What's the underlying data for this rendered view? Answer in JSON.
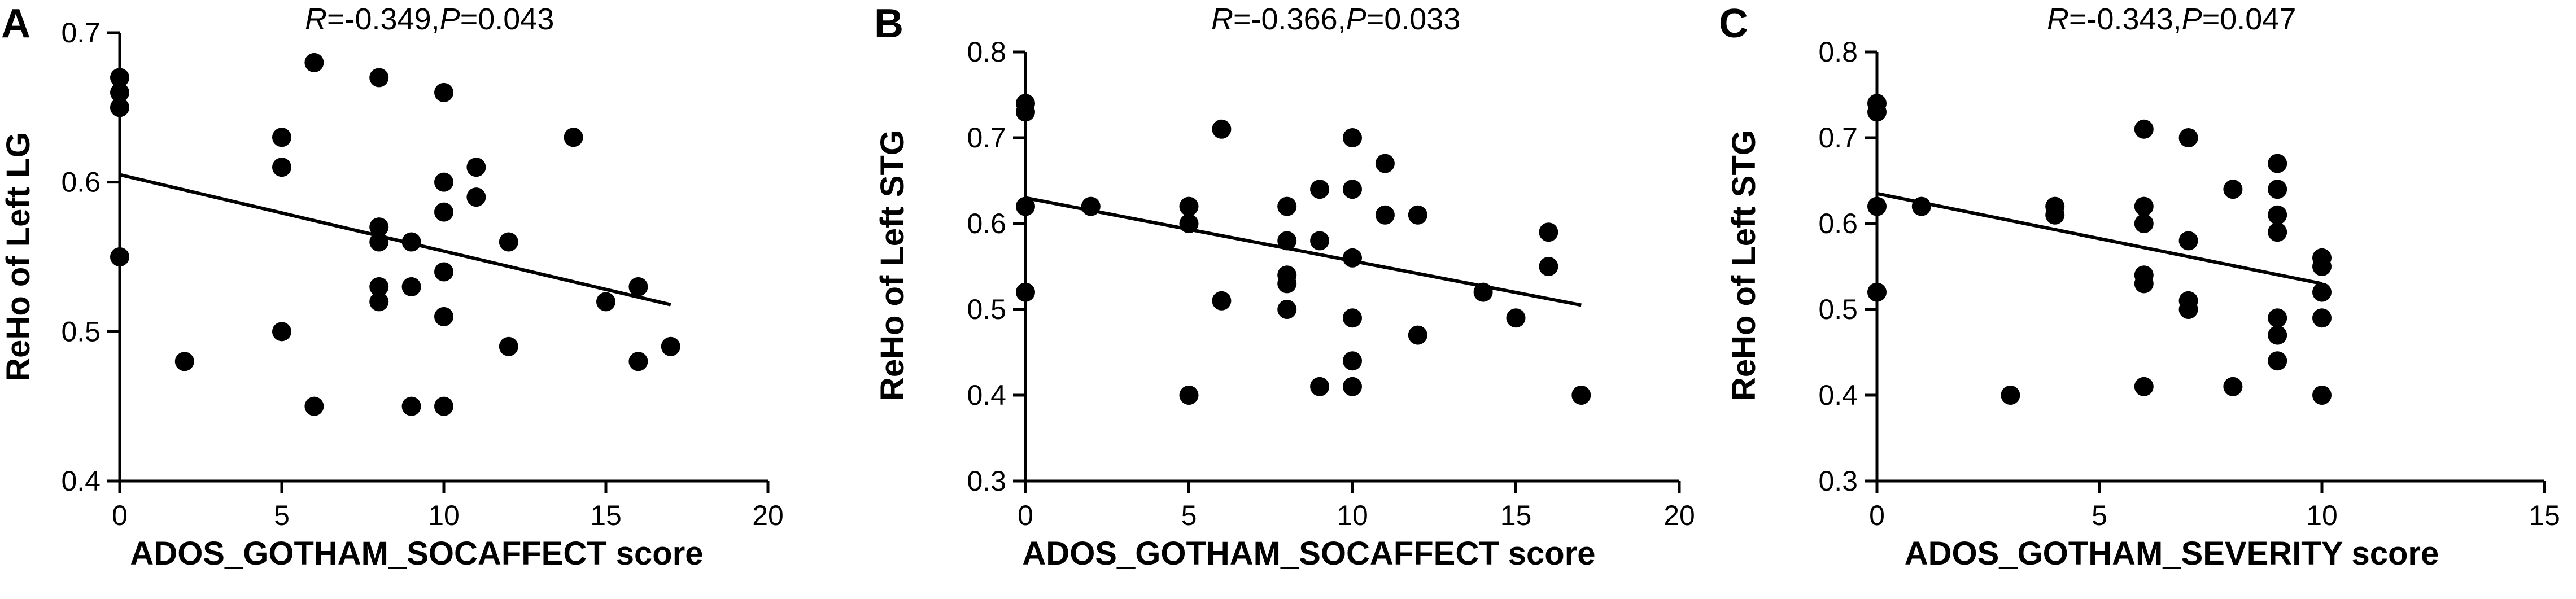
{
  "chart_data": [
    {
      "type": "scatter",
      "panel_label": "A",
      "annotation": {
        "r_label": "R",
        "r_value": "=-0.349,",
        "p_label": "P",
        "p_value": "=0.043"
      },
      "xlabel": "ADOS_GOTHAM_SOCAFFECT score",
      "ylabel": "ReHo of Left LG",
      "xlim": [
        0,
        20
      ],
      "ylim": [
        0.4,
        0.7
      ],
      "x_ticks": [
        0,
        5,
        10,
        15,
        20
      ],
      "x_tick_labels": [
        "0",
        "5",
        "10",
        "15",
        "20"
      ],
      "y_ticks": [
        0.4,
        0.5,
        0.6,
        0.7
      ],
      "y_tick_labels": [
        "0.4",
        "0.5",
        "0.6",
        "0.7"
      ],
      "grid": false,
      "fit_line": {
        "x": [
          0,
          17
        ],
        "y": [
          0.605,
          0.518
        ]
      },
      "points": [
        {
          "x": 0,
          "y": 0.67
        },
        {
          "x": 0,
          "y": 0.66
        },
        {
          "x": 0,
          "y": 0.65
        },
        {
          "x": 0,
          "y": 0.55
        },
        {
          "x": 2,
          "y": 0.48
        },
        {
          "x": 5,
          "y": 0.63
        },
        {
          "x": 5,
          "y": 0.61
        },
        {
          "x": 5,
          "y": 0.5
        },
        {
          "x": 6,
          "y": 0.68
        },
        {
          "x": 6,
          "y": 0.45
        },
        {
          "x": 8,
          "y": 0.67
        },
        {
          "x": 8,
          "y": 0.57
        },
        {
          "x": 8,
          "y": 0.56
        },
        {
          "x": 8,
          "y": 0.53
        },
        {
          "x": 8,
          "y": 0.52
        },
        {
          "x": 9,
          "y": 0.56
        },
        {
          "x": 9,
          "y": 0.53
        },
        {
          "x": 9,
          "y": 0.45
        },
        {
          "x": 10,
          "y": 0.66
        },
        {
          "x": 10,
          "y": 0.6
        },
        {
          "x": 10,
          "y": 0.58
        },
        {
          "x": 10,
          "y": 0.54
        },
        {
          "x": 10,
          "y": 0.51
        },
        {
          "x": 10,
          "y": 0.45
        },
        {
          "x": 11,
          "y": 0.61
        },
        {
          "x": 11,
          "y": 0.59
        },
        {
          "x": 12,
          "y": 0.56
        },
        {
          "x": 12,
          "y": 0.49
        },
        {
          "x": 14,
          "y": 0.63
        },
        {
          "x": 15,
          "y": 0.52
        },
        {
          "x": 16,
          "y": 0.53
        },
        {
          "x": 16,
          "y": 0.48
        },
        {
          "x": 17,
          "y": 0.49
        }
      ]
    },
    {
      "type": "scatter",
      "panel_label": "B",
      "annotation": {
        "r_label": "R",
        "r_value": "=-0.366,",
        "p_label": "P",
        "p_value": "=0.033"
      },
      "xlabel": "ADOS_GOTHAM_SOCAFFECT score",
      "ylabel": "ReHo of Left STG",
      "xlim": [
        0,
        20
      ],
      "ylim": [
        0.3,
        0.8
      ],
      "x_ticks": [
        0,
        5,
        10,
        15,
        20
      ],
      "x_tick_labels": [
        "0",
        "5",
        "10",
        "15",
        "20"
      ],
      "y_ticks": [
        0.3,
        0.4,
        0.5,
        0.6,
        0.7,
        0.8
      ],
      "y_tick_labels": [
        "0.3",
        "0.4",
        "0.5",
        "0.6",
        "0.7",
        "0.8"
      ],
      "grid": false,
      "fit_line": {
        "x": [
          0,
          17
        ],
        "y": [
          0.63,
          0.505
        ]
      },
      "points": [
        {
          "x": 0,
          "y": 0.74
        },
        {
          "x": 0,
          "y": 0.73
        },
        {
          "x": 0,
          "y": 0.62
        },
        {
          "x": 0,
          "y": 0.52
        },
        {
          "x": 2,
          "y": 0.62
        },
        {
          "x": 5,
          "y": 0.62
        },
        {
          "x": 5,
          "y": 0.6
        },
        {
          "x": 5,
          "y": 0.4
        },
        {
          "x": 6,
          "y": 0.71
        },
        {
          "x": 6,
          "y": 0.51
        },
        {
          "x": 8,
          "y": 0.62
        },
        {
          "x": 8,
          "y": 0.58
        },
        {
          "x": 8,
          "y": 0.54
        },
        {
          "x": 8,
          "y": 0.53
        },
        {
          "x": 8,
          "y": 0.5
        },
        {
          "x": 9,
          "y": 0.64
        },
        {
          "x": 9,
          "y": 0.58
        },
        {
          "x": 9,
          "y": 0.41
        },
        {
          "x": 10,
          "y": 0.7
        },
        {
          "x": 10,
          "y": 0.64
        },
        {
          "x": 10,
          "y": 0.56
        },
        {
          "x": 10,
          "y": 0.49
        },
        {
          "x": 10,
          "y": 0.44
        },
        {
          "x": 10,
          "y": 0.41
        },
        {
          "x": 11,
          "y": 0.67
        },
        {
          "x": 11,
          "y": 0.61
        },
        {
          "x": 12,
          "y": 0.61
        },
        {
          "x": 12,
          "y": 0.47
        },
        {
          "x": 14,
          "y": 0.52
        },
        {
          "x": 15,
          "y": 0.49
        },
        {
          "x": 16,
          "y": 0.59
        },
        {
          "x": 16,
          "y": 0.55
        },
        {
          "x": 17,
          "y": 0.4
        }
      ]
    },
    {
      "type": "scatter",
      "panel_label": "C",
      "annotation": {
        "r_label": "R",
        "r_value": "=-0.343,",
        "p_label": "P",
        "p_value": "=0.047"
      },
      "xlabel": "ADOS_GOTHAM_SEVERITY score",
      "ylabel": "ReHo of Left STG",
      "xlim": [
        0,
        15
      ],
      "ylim": [
        0.3,
        0.8
      ],
      "x_ticks": [
        0,
        5,
        10,
        15
      ],
      "x_tick_labels": [
        "0",
        "5",
        "10",
        "15"
      ],
      "y_ticks": [
        0.3,
        0.4,
        0.5,
        0.6,
        0.7,
        0.8
      ],
      "y_tick_labels": [
        "0.3",
        "0.4",
        "0.5",
        "0.6",
        "0.7",
        "0.8"
      ],
      "grid": false,
      "fit_line": {
        "x": [
          0,
          10
        ],
        "y": [
          0.635,
          0.53
        ]
      },
      "points": [
        {
          "x": 0,
          "y": 0.74
        },
        {
          "x": 0,
          "y": 0.73
        },
        {
          "x": 0,
          "y": 0.62
        },
        {
          "x": 0,
          "y": 0.52
        },
        {
          "x": 1,
          "y": 0.62
        },
        {
          "x": 3,
          "y": 0.4
        },
        {
          "x": 4,
          "y": 0.62
        },
        {
          "x": 4,
          "y": 0.61
        },
        {
          "x": 6,
          "y": 0.71
        },
        {
          "x": 6,
          "y": 0.62
        },
        {
          "x": 6,
          "y": 0.6
        },
        {
          "x": 6,
          "y": 0.54
        },
        {
          "x": 6,
          "y": 0.53
        },
        {
          "x": 6,
          "y": 0.41
        },
        {
          "x": 7,
          "y": 0.7
        },
        {
          "x": 7,
          "y": 0.58
        },
        {
          "x": 7,
          "y": 0.51
        },
        {
          "x": 7,
          "y": 0.5
        },
        {
          "x": 8,
          "y": 0.64
        },
        {
          "x": 8,
          "y": 0.41
        },
        {
          "x": 9,
          "y": 0.67
        },
        {
          "x": 9,
          "y": 0.64
        },
        {
          "x": 9,
          "y": 0.61
        },
        {
          "x": 9,
          "y": 0.59
        },
        {
          "x": 9,
          "y": 0.49
        },
        {
          "x": 9,
          "y": 0.47
        },
        {
          "x": 9,
          "y": 0.44
        },
        {
          "x": 10,
          "y": 0.56
        },
        {
          "x": 10,
          "y": 0.55
        },
        {
          "x": 10,
          "y": 0.52
        },
        {
          "x": 10,
          "y": 0.49
        },
        {
          "x": 10,
          "y": 0.4
        }
      ]
    }
  ]
}
